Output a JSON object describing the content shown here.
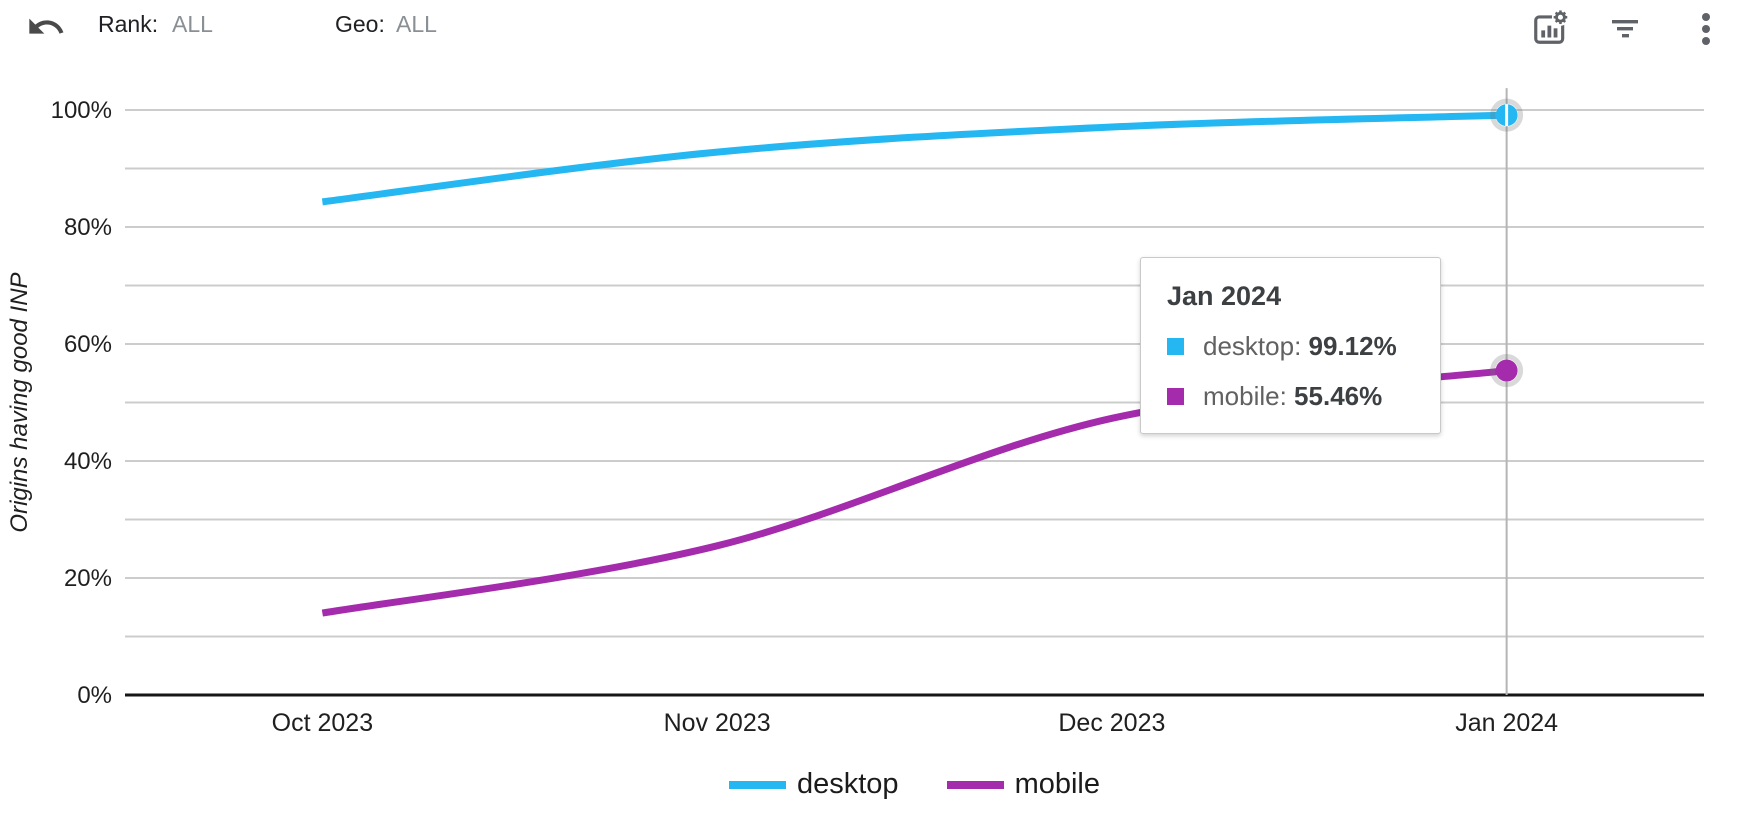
{
  "header": {
    "rank_label": "Rank:",
    "rank_value": "ALL",
    "geo_label": "Geo:",
    "geo_value": "ALL",
    "icons": [
      "undo-arrow-icon",
      "chart-settings-icon",
      "filter-icon",
      "kebab-menu-icon"
    ]
  },
  "chart_data": {
    "type": "line",
    "title": "",
    "xlabel": "",
    "ylabel": "Origins having good INP",
    "categories": [
      "Oct 2023",
      "Nov 2023",
      "Dec 2023",
      "Jan 2024"
    ],
    "series": [
      {
        "name": "desktop",
        "color": "#24B7F2",
        "values": [
          84.3,
          92.8,
          97.1,
          99.12
        ]
      },
      {
        "name": "mobile",
        "color": "#A32BAC",
        "values": [
          14.0,
          25.5,
          47.3,
          55.46
        ]
      }
    ],
    "ylim": [
      0,
      100
    ],
    "yticks_major": [
      0,
      20,
      40,
      60,
      80,
      100
    ],
    "ytick_minor_step": 10,
    "ytick_format": "{v}%",
    "grid": "horizontal-only",
    "legend_position": "bottom",
    "highlight_category": "Jan 2024",
    "highlight_index": 3,
    "colors": {
      "gridline": "#cccccc",
      "axis": "#161616",
      "crosshair": "#b5b5b5",
      "tick_text": "#1f1f1f"
    }
  },
  "tooltip": {
    "title": "Jan 2024",
    "rows": [
      {
        "label": "desktop: ",
        "value": "99.12%",
        "color": "#24B7F2"
      },
      {
        "label": "mobile: ",
        "value": "55.46%",
        "color": "#A32BAC"
      }
    ]
  },
  "legend": {
    "items": [
      {
        "label": "desktop",
        "color": "#24B7F2"
      },
      {
        "label": "mobile",
        "color": "#A32BAC"
      }
    ]
  }
}
